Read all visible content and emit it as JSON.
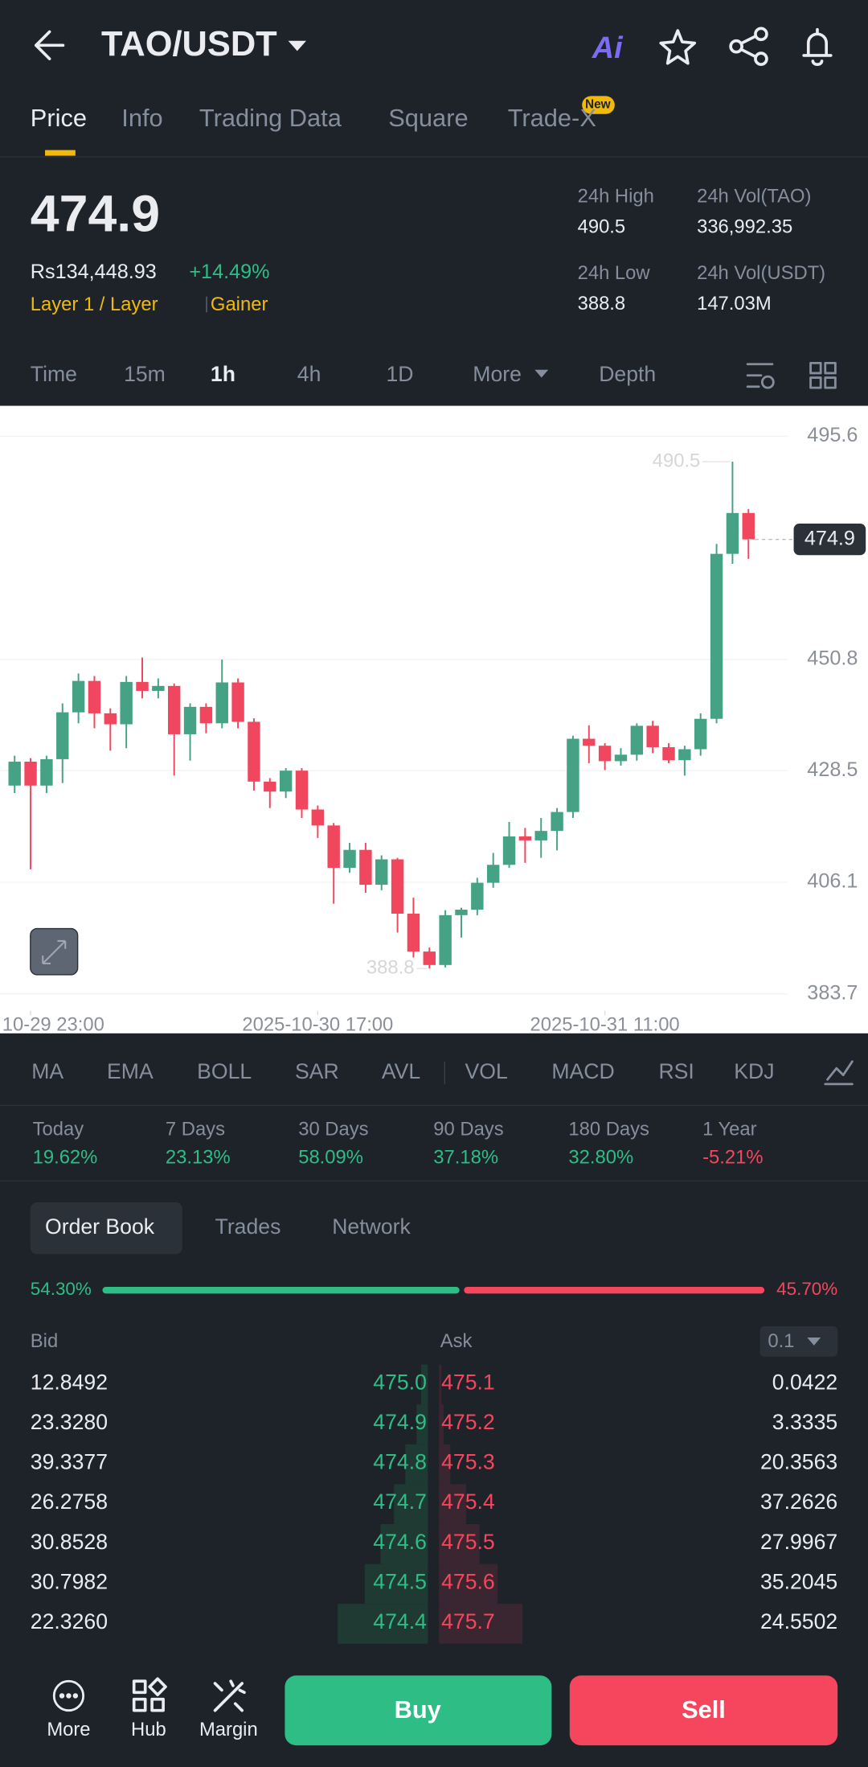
{
  "header": {
    "title": "TAO/USDT",
    "ai": "Ai"
  },
  "tabs": [
    "Price",
    "Info",
    "Trading Data",
    "Square",
    "Trade-X"
  ],
  "new_badge": "New",
  "price": {
    "last": "474.9",
    "fiat": "Rs134,448.93",
    "change": "+14.49%",
    "tags": [
      "Layer 1 / Layer",
      "Gainer"
    ],
    "stats": [
      {
        "label": "24h High",
        "value": "490.5"
      },
      {
        "label": "24h Vol(TAO)",
        "value": "336,992.35"
      },
      {
        "label": "24h Low",
        "value": "388.8"
      },
      {
        "label": "24h Vol(USDT)",
        "value": "147.03M"
      }
    ]
  },
  "intervals": [
    "Time",
    "15m",
    "1h",
    "4h",
    "1D",
    "More",
    "Depth"
  ],
  "chart_data": {
    "type": "candlestick",
    "colors": {
      "up": "#46a285",
      "down": "#f0475e"
    },
    "ylim": [
      383.7,
      495.6
    ],
    "yticks": [
      495.6,
      450.8,
      428.5,
      406.1,
      383.7
    ],
    "xlim": [
      -1,
      54
    ],
    "xticks": [
      {
        "value": 1,
        "label": "10-29 23:00"
      },
      {
        "value": 19,
        "label": "2025-10-30 17:00"
      },
      {
        "value": 37,
        "label": "2025-10-31 11:00"
      }
    ],
    "last_price": 474.9,
    "max_label": 490.5,
    "min_label": 388.8,
    "open": [
      425.5,
      430.3,
      425.5,
      430.8,
      440.2,
      446.5,
      440.0,
      437.8,
      446.3,
      444.5,
      445.5,
      435.8,
      441.3,
      438.0,
      446.2,
      438.3,
      426.3,
      424.3,
      428.5,
      420.7,
      417.5,
      409.0,
      412.6,
      405.6,
      410.7,
      399.8,
      392.2,
      389.5,
      399.5,
      400.6,
      406.0,
      409.6,
      415.3,
      414.5,
      416.4,
      420.2,
      434.9,
      433.5,
      430.4,
      431.7,
      437.5,
      433.2,
      430.6,
      432.8,
      438.9,
      472.0,
      480.2
    ],
    "close": [
      430.3,
      425.5,
      430.8,
      440.2,
      446.5,
      440.0,
      437.8,
      446.3,
      444.5,
      445.5,
      435.8,
      441.3,
      438.0,
      446.2,
      438.3,
      426.3,
      424.3,
      428.5,
      420.7,
      417.5,
      409.0,
      412.6,
      405.6,
      410.7,
      399.8,
      392.2,
      389.5,
      399.5,
      400.6,
      406.0,
      409.6,
      415.3,
      414.5,
      416.4,
      420.2,
      434.9,
      433.5,
      430.4,
      431.7,
      437.5,
      433.2,
      430.6,
      432.8,
      438.9,
      472.0,
      480.2,
      474.9
    ],
    "high": [
      431.5,
      431,
      431.5,
      442,
      448,
      447.5,
      441,
      447.5,
      451.2,
      447,
      446,
      442,
      442,
      450.8,
      447,
      439,
      427,
      429,
      429,
      421.5,
      418,
      414,
      414,
      411.5,
      411,
      403,
      393,
      400.5,
      401,
      407,
      412,
      418.2,
      417,
      419,
      421,
      435.5,
      437.6,
      434,
      433,
      438,
      438.5,
      434,
      433.5,
      440,
      474,
      490.5,
      481
    ],
    "low": [
      424,
      408.7,
      424,
      426,
      438,
      437,
      432.5,
      433,
      443,
      443,
      427.5,
      430.5,
      436,
      437,
      437,
      424.5,
      421,
      423,
      419,
      415,
      401.8,
      408,
      404,
      404.5,
      396,
      391,
      388.8,
      389,
      395,
      399.5,
      405,
      409,
      410,
      411,
      412.5,
      419,
      430,
      428.6,
      429.5,
      430.5,
      432,
      430,
      427.5,
      431.5,
      438,
      470,
      471
    ]
  },
  "indicators": [
    "MA",
    "EMA",
    "BOLL",
    "SAR",
    "AVL",
    "VOL",
    "MACD",
    "RSI",
    "KDJ"
  ],
  "performance": [
    {
      "label": "Today",
      "value": "19.62%"
    },
    {
      "label": "7 Days",
      "value": "23.13%"
    },
    {
      "label": "30 Days",
      "value": "58.09%"
    },
    {
      "label": "90 Days",
      "value": "37.18%"
    },
    {
      "label": "180 Days",
      "value": "32.80%"
    },
    {
      "label": "1 Year",
      "value": "-5.21%"
    }
  ],
  "order_tabs": [
    "Order Book",
    "Trades",
    "Network"
  ],
  "ratio": {
    "bid": 54.3,
    "ask": 45.7,
    "bid_label": "54.30%",
    "ask_label": "45.70%"
  },
  "order_book": {
    "headers": [
      "Bid",
      "Ask"
    ],
    "precision": "0.1",
    "rows": [
      [
        "12.8492",
        "475.0",
        "475.1",
        "0.0422"
      ],
      [
        "23.3280",
        "474.9",
        "475.2",
        "3.3335"
      ],
      [
        "39.3377",
        "474.8",
        "475.3",
        "20.3563"
      ],
      [
        "26.2758",
        "474.7",
        "475.4",
        "37.2626"
      ],
      [
        "30.8528",
        "474.6",
        "475.5",
        "27.9967"
      ],
      [
        "30.7982",
        "474.5",
        "475.6",
        "35.2045"
      ],
      [
        "22.3260",
        "474.4",
        "475.7",
        "24.5502"
      ]
    ]
  },
  "bottom": {
    "nav": [
      "More",
      "Hub",
      "Margin"
    ],
    "buy": "Buy",
    "sell": "Sell"
  }
}
